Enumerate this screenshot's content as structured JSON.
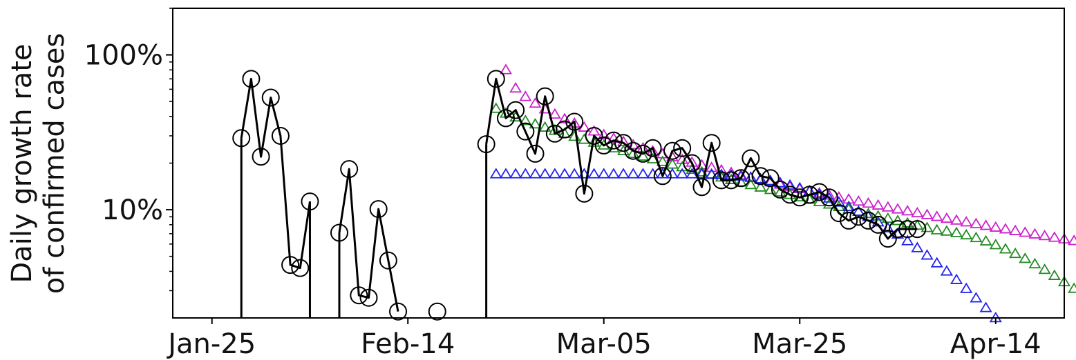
{
  "chart_data": {
    "type": "line",
    "title": "",
    "ylabel_lines": [
      "Daily growth rate",
      "of confirmed cases"
    ],
    "xlabel": "",
    "y_scale": "log",
    "y_unit": "%",
    "ylim": [
      2.0,
      200
    ],
    "x_unit": "date",
    "xlim": [
      "2020-01-21",
      "2020-04-21"
    ],
    "x_ticks": [
      {
        "date": "2020-01-25",
        "label": "Jan-25"
      },
      {
        "date": "2020-02-14",
        "label": "Feb-14"
      },
      {
        "date": "2020-03-05",
        "label": "Mar-05"
      },
      {
        "date": "2020-03-25",
        "label": "Mar-25"
      },
      {
        "date": "2020-04-14",
        "label": "Apr-14"
      }
    ],
    "y_ticks": [
      {
        "value": 10,
        "label": "10%"
      },
      {
        "value": 100,
        "label": "100%"
      }
    ],
    "grid": false,
    "legend": "none",
    "observed": {
      "color": "#000000",
      "marker": "open-circle",
      "segments": [
        {
          "x": [
            "2020-01-28",
            "2020-01-29",
            "2020-01-30",
            "2020-01-31",
            "2020-02-01",
            "2020-02-02",
            "2020-02-03",
            "2020-02-04"
          ],
          "y": [
            29,
            70,
            22,
            53,
            30,
            4.4,
            4.2,
            11.3
          ]
        },
        {
          "x": [
            "2020-02-07",
            "2020-02-08",
            "2020-02-09",
            "2020-02-10",
            "2020-02-11",
            "2020-02-12",
            "2020-02-13"
          ],
          "y": [
            7.1,
            18.3,
            2.8,
            2.7,
            10.1,
            4.7,
            2.2
          ]
        },
        {
          "x": [
            "2020-02-17"
          ],
          "y": [
            2.2
          ]
        },
        {
          "x": [
            "2020-02-22",
            "2020-02-23",
            "2020-02-24",
            "2020-02-25",
            "2020-02-26",
            "2020-02-27",
            "2020-02-28",
            "2020-02-29",
            "2020-03-01",
            "2020-03-02",
            "2020-03-03",
            "2020-03-04",
            "2020-03-05",
            "2020-03-06",
            "2020-03-07",
            "2020-03-08",
            "2020-03-09",
            "2020-03-10",
            "2020-03-11",
            "2020-03-12",
            "2020-03-13",
            "2020-03-14",
            "2020-03-15",
            "2020-03-16",
            "2020-03-17",
            "2020-03-18",
            "2020-03-19",
            "2020-03-20",
            "2020-03-21",
            "2020-03-22",
            "2020-03-23",
            "2020-03-24",
            "2020-03-25",
            "2020-03-26",
            "2020-03-27",
            "2020-03-28",
            "2020-03-29",
            "2020-03-30",
            "2020-03-31",
            "2020-04-01",
            "2020-04-02",
            "2020-04-03",
            "2020-04-04",
            "2020-04-05",
            "2020-04-06"
          ],
          "y": [
            26.5,
            70,
            39,
            44,
            32,
            23,
            54,
            31,
            33,
            37,
            12.7,
            30,
            26,
            28,
            27,
            24,
            23,
            25,
            16.5,
            24,
            25,
            20,
            14,
            27,
            15.5,
            15.5,
            16,
            21.5,
            16.5,
            16,
            13.5,
            12.5,
            12,
            12.5,
            13,
            12,
            9.5,
            8.5,
            9,
            8.5,
            8,
            6.5,
            7.5,
            7.5,
            7.5
          ]
        }
      ],
      "drop_lines_at": [
        "2020-01-28",
        "2020-02-04",
        "2020-02-07",
        "2020-02-22"
      ]
    },
    "series": [
      {
        "color": "#cc22cc",
        "marker": "open-triangle",
        "x_start": "2020-02-24",
        "x_end": "2020-04-27",
        "y_start": 80,
        "y_end": 5.6,
        "shape": "power-decay"
      },
      {
        "color": "#228b22",
        "marker": "open-triangle",
        "x_start": "2020-02-23",
        "x_end": "2020-04-26",
        "y_start": 45,
        "y_end": 2.0,
        "shape": "green-model"
      },
      {
        "color": "#2222ee",
        "marker": "open-triangle",
        "x_start": "2020-02-23",
        "x_end": "2020-04-14",
        "y_start": 17,
        "y_end": 2.0,
        "shape": "blue-model"
      }
    ]
  }
}
